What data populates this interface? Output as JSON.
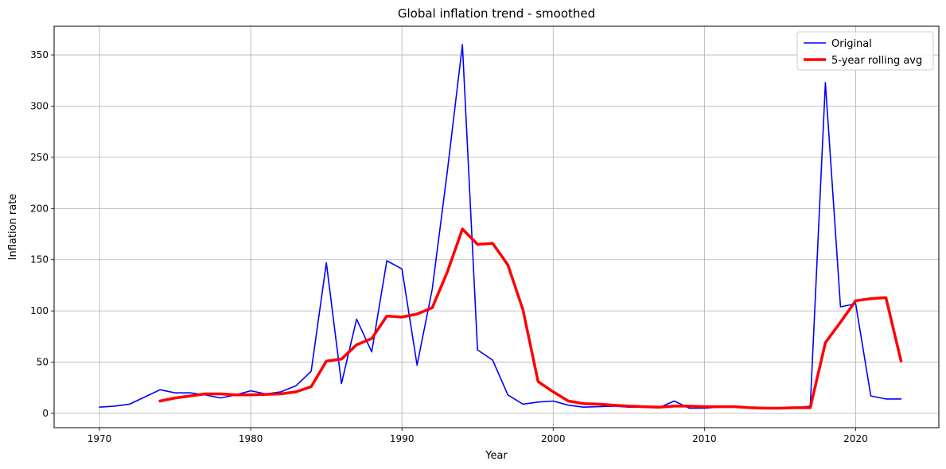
{
  "chart_data": {
    "type": "line",
    "title": "Global inflation trend - smoothed",
    "xlabel": "Year",
    "ylabel": "Inflation rate",
    "xlim": [
      1967,
      2025.5
    ],
    "ylim": [
      -14,
      378
    ],
    "xticks": [
      1970,
      1980,
      1990,
      2000,
      2010,
      2020
    ],
    "yticks": [
      0,
      50,
      100,
      150,
      200,
      250,
      300,
      350
    ],
    "grid": true,
    "legend_position": "top-right",
    "series": [
      {
        "name": "Original",
        "color": "#0000ff",
        "x": [
          1970,
          1971,
          1972,
          1973,
          1974,
          1975,
          1976,
          1977,
          1978,
          1979,
          1980,
          1981,
          1982,
          1983,
          1984,
          1985,
          1986,
          1987,
          1988,
          1989,
          1990,
          1991,
          1992,
          1993,
          1994,
          1995,
          1996,
          1997,
          1998,
          1999,
          2000,
          2001,
          2002,
          2003,
          2004,
          2005,
          2006,
          2007,
          2008,
          2009,
          2010,
          2011,
          2012,
          2013,
          2014,
          2015,
          2016,
          2017,
          2018,
          2019,
          2020,
          2021,
          2022,
          2023
        ],
        "values": [
          6,
          7,
          9,
          16,
          23,
          20,
          20,
          18,
          15,
          18,
          22,
          19,
          21,
          27,
          41,
          147,
          29,
          92,
          60,
          149,
          141,
          47,
          121,
          236,
          360,
          62,
          52,
          18,
          9,
          11,
          12,
          8,
          6,
          6.5,
          7,
          6,
          6,
          5.5,
          12,
          5,
          5,
          6,
          6,
          5.5,
          5,
          5,
          5,
          7,
          323,
          104,
          107,
          17,
          14,
          14
        ]
      },
      {
        "name": "5-year rolling avg",
        "color": "#ff0000",
        "x": [
          1974,
          1975,
          1976,
          1977,
          1978,
          1979,
          1980,
          1981,
          1982,
          1983,
          1984,
          1985,
          1986,
          1987,
          1988,
          1989,
          1990,
          1991,
          1992,
          1993,
          1994,
          1995,
          1996,
          1997,
          1998,
          1999,
          2000,
          2001,
          2002,
          2003,
          2004,
          2005,
          2006,
          2007,
          2008,
          2009,
          2010,
          2011,
          2012,
          2013,
          2014,
          2015,
          2016,
          2017,
          2018,
          2019,
          2020,
          2021,
          2022,
          2023
        ],
        "values": [
          12,
          15,
          17,
          19,
          19,
          18,
          18,
          18.5,
          19,
          21,
          26,
          51,
          53,
          67,
          73,
          95,
          94,
          97,
          103,
          138,
          180,
          165,
          166,
          145,
          101,
          31,
          21,
          12,
          9.5,
          9,
          8,
          7,
          6.5,
          6,
          7,
          7,
          6.5,
          6.5,
          6.5,
          5.5,
          5,
          5,
          5.5,
          5.5,
          69,
          89,
          110,
          112,
          113,
          51
        ]
      }
    ]
  }
}
